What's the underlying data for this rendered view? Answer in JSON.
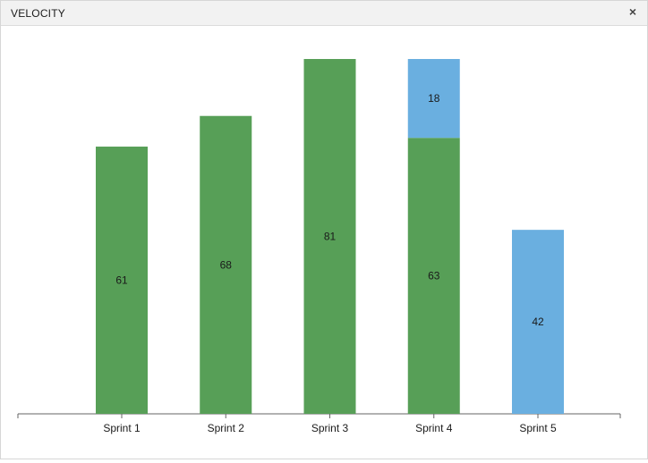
{
  "window": {
    "title": "VELOCITY",
    "close_glyph": "×",
    "close_icon": "close-icon"
  },
  "colors": {
    "completed": "#579f57",
    "remaining": "#6aafe0",
    "axis": "#666666",
    "label": "#1a1a1a"
  },
  "chart_data": {
    "type": "bar",
    "stacked": true,
    "categories": [
      "Sprint 1",
      "Sprint 2",
      "Sprint 3",
      "Sprint 4",
      "Sprint 5"
    ],
    "series": [
      {
        "values": [
          61,
          68,
          81,
          63,
          0
        ]
      },
      {
        "values": [
          0,
          0,
          0,
          18,
          42
        ]
      }
    ],
    "data_labels": true,
    "ylim": [
      0,
      81
    ],
    "grid": false,
    "legend": "none"
  }
}
